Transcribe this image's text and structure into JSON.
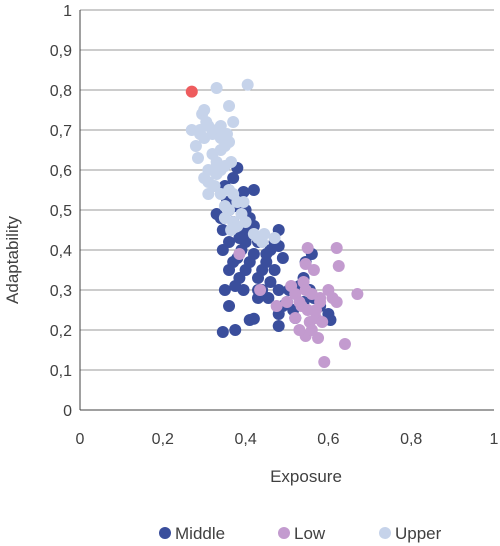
{
  "chart_data": {
    "type": "scatter",
    "xlabel": "Exposure",
    "ylabel": "Adaptability",
    "xlim": [
      0,
      1
    ],
    "ylim": [
      0,
      1
    ],
    "x_ticks": [
      "0",
      "0,2",
      "0,4",
      "0,6",
      "0,8",
      "1"
    ],
    "y_ticks": [
      "0",
      "0,1",
      "0,2",
      "0,3",
      "0,4",
      "0,5",
      "0,6",
      "0,7",
      "0,8",
      "0,9",
      "1"
    ],
    "grid": "horizontal",
    "legend_position": "bottom",
    "colors": {
      "Middle": "#3a4e9c",
      "Low": "#c39bcf",
      "Upper": "#c6d3ea",
      "highlight": "#ee5c5e"
    },
    "series": [
      {
        "name": "Middle",
        "points": [
          [
            0.345,
            0.195
          ],
          [
            0.375,
            0.2
          ],
          [
            0.36,
            0.26
          ],
          [
            0.35,
            0.3
          ],
          [
            0.375,
            0.31
          ],
          [
            0.385,
            0.33
          ],
          [
            0.395,
            0.3
          ],
          [
            0.36,
            0.35
          ],
          [
            0.37,
            0.37
          ],
          [
            0.345,
            0.4
          ],
          [
            0.36,
            0.42
          ],
          [
            0.38,
            0.38
          ],
          [
            0.39,
            0.4
          ],
          [
            0.4,
            0.35
          ],
          [
            0.41,
            0.37
          ],
          [
            0.42,
            0.39
          ],
          [
            0.4,
            0.42
          ],
          [
            0.41,
            0.44
          ],
          [
            0.42,
            0.46
          ],
          [
            0.41,
            0.48
          ],
          [
            0.4,
            0.5
          ],
          [
            0.39,
            0.52
          ],
          [
            0.395,
            0.545
          ],
          [
            0.42,
            0.55
          ],
          [
            0.43,
            0.33
          ],
          [
            0.44,
            0.3
          ],
          [
            0.43,
            0.28
          ],
          [
            0.44,
            0.35
          ],
          [
            0.45,
            0.37
          ],
          [
            0.46,
            0.32
          ],
          [
            0.46,
            0.4
          ],
          [
            0.47,
            0.42
          ],
          [
            0.48,
            0.41
          ],
          [
            0.48,
            0.45
          ],
          [
            0.49,
            0.38
          ],
          [
            0.47,
            0.35
          ],
          [
            0.48,
            0.3
          ],
          [
            0.49,
            0.26
          ],
          [
            0.48,
            0.24
          ],
          [
            0.48,
            0.21
          ],
          [
            0.5,
            0.27
          ],
          [
            0.505,
            0.3
          ],
          [
            0.515,
            0.25
          ],
          [
            0.52,
            0.23
          ],
          [
            0.53,
            0.31
          ],
          [
            0.54,
            0.27
          ],
          [
            0.54,
            0.33
          ],
          [
            0.555,
            0.3
          ],
          [
            0.545,
            0.37
          ],
          [
            0.56,
            0.39
          ],
          [
            0.565,
            0.28
          ],
          [
            0.58,
            0.26
          ],
          [
            0.6,
            0.24
          ],
          [
            0.605,
            0.225
          ],
          [
            0.41,
            0.225
          ],
          [
            0.42,
            0.228
          ],
          [
            0.38,
            0.605
          ],
          [
            0.37,
            0.58
          ],
          [
            0.35,
            0.56
          ],
          [
            0.355,
            0.52
          ],
          [
            0.34,
            0.48
          ],
          [
            0.37,
            0.47
          ],
          [
            0.385,
            0.43
          ],
          [
            0.395,
            0.455
          ],
          [
            0.43,
            0.42
          ],
          [
            0.45,
            0.39
          ],
          [
            0.33,
            0.49
          ],
          [
            0.345,
            0.45
          ],
          [
            0.36,
            0.5
          ],
          [
            0.375,
            0.51
          ],
          [
            0.43,
            0.3
          ],
          [
            0.455,
            0.28
          ]
        ]
      },
      {
        "name": "Low",
        "points": [
          [
            0.385,
            0.39
          ],
          [
            0.435,
            0.3
          ],
          [
            0.475,
            0.26
          ],
          [
            0.5,
            0.27
          ],
          [
            0.51,
            0.31
          ],
          [
            0.52,
            0.29
          ],
          [
            0.53,
            0.27
          ],
          [
            0.54,
            0.32
          ],
          [
            0.535,
            0.26
          ],
          [
            0.545,
            0.3
          ],
          [
            0.55,
            0.25
          ],
          [
            0.56,
            0.29
          ],
          [
            0.555,
            0.22
          ],
          [
            0.545,
            0.185
          ],
          [
            0.57,
            0.23
          ],
          [
            0.575,
            0.18
          ],
          [
            0.58,
            0.28
          ],
          [
            0.585,
            0.22
          ],
          [
            0.59,
            0.12
          ],
          [
            0.565,
            0.35
          ],
          [
            0.545,
            0.365
          ],
          [
            0.55,
            0.405
          ],
          [
            0.62,
            0.405
          ],
          [
            0.625,
            0.36
          ],
          [
            0.61,
            0.28
          ],
          [
            0.62,
            0.27
          ],
          [
            0.64,
            0.165
          ],
          [
            0.67,
            0.29
          ],
          [
            0.6,
            0.3
          ],
          [
            0.57,
            0.25
          ],
          [
            0.53,
            0.2
          ],
          [
            0.52,
            0.23
          ],
          [
            0.56,
            0.2
          ],
          [
            0.58,
            0.27
          ]
        ]
      },
      {
        "name": "Upper",
        "points": [
          [
            0.27,
            0.7
          ],
          [
            0.28,
            0.66
          ],
          [
            0.285,
            0.63
          ],
          [
            0.29,
            0.7
          ],
          [
            0.295,
            0.74
          ],
          [
            0.3,
            0.75
          ],
          [
            0.305,
            0.72
          ],
          [
            0.31,
            0.71
          ],
          [
            0.3,
            0.68
          ],
          [
            0.29,
            0.69
          ],
          [
            0.32,
            0.69
          ],
          [
            0.33,
            0.7
          ],
          [
            0.34,
            0.68
          ],
          [
            0.35,
            0.66
          ],
          [
            0.36,
            0.67
          ],
          [
            0.32,
            0.64
          ],
          [
            0.34,
            0.65
          ],
          [
            0.31,
            0.6
          ],
          [
            0.33,
            0.59
          ],
          [
            0.34,
            0.6
          ],
          [
            0.35,
            0.61
          ],
          [
            0.365,
            0.62
          ],
          [
            0.3,
            0.58
          ],
          [
            0.31,
            0.57
          ],
          [
            0.325,
            0.56
          ],
          [
            0.34,
            0.54
          ],
          [
            0.35,
            0.51
          ],
          [
            0.36,
            0.55
          ],
          [
            0.37,
            0.54
          ],
          [
            0.38,
            0.52
          ],
          [
            0.36,
            0.5
          ],
          [
            0.35,
            0.48
          ],
          [
            0.37,
            0.47
          ],
          [
            0.365,
            0.45
          ],
          [
            0.38,
            0.46
          ],
          [
            0.39,
            0.49
          ],
          [
            0.395,
            0.52
          ],
          [
            0.37,
            0.72
          ],
          [
            0.36,
            0.76
          ],
          [
            0.33,
            0.805
          ],
          [
            0.405,
            0.813
          ],
          [
            0.4,
            0.47
          ],
          [
            0.42,
            0.44
          ],
          [
            0.43,
            0.43
          ],
          [
            0.445,
            0.44
          ],
          [
            0.47,
            0.43
          ],
          [
            0.44,
            0.42
          ],
          [
            0.31,
            0.54
          ],
          [
            0.32,
            0.6
          ],
          [
            0.33,
            0.62
          ],
          [
            0.34,
            0.71
          ],
          [
            0.355,
            0.69
          ]
        ]
      }
    ],
    "highlight": {
      "x": 0.27,
      "y": 0.796
    }
  }
}
